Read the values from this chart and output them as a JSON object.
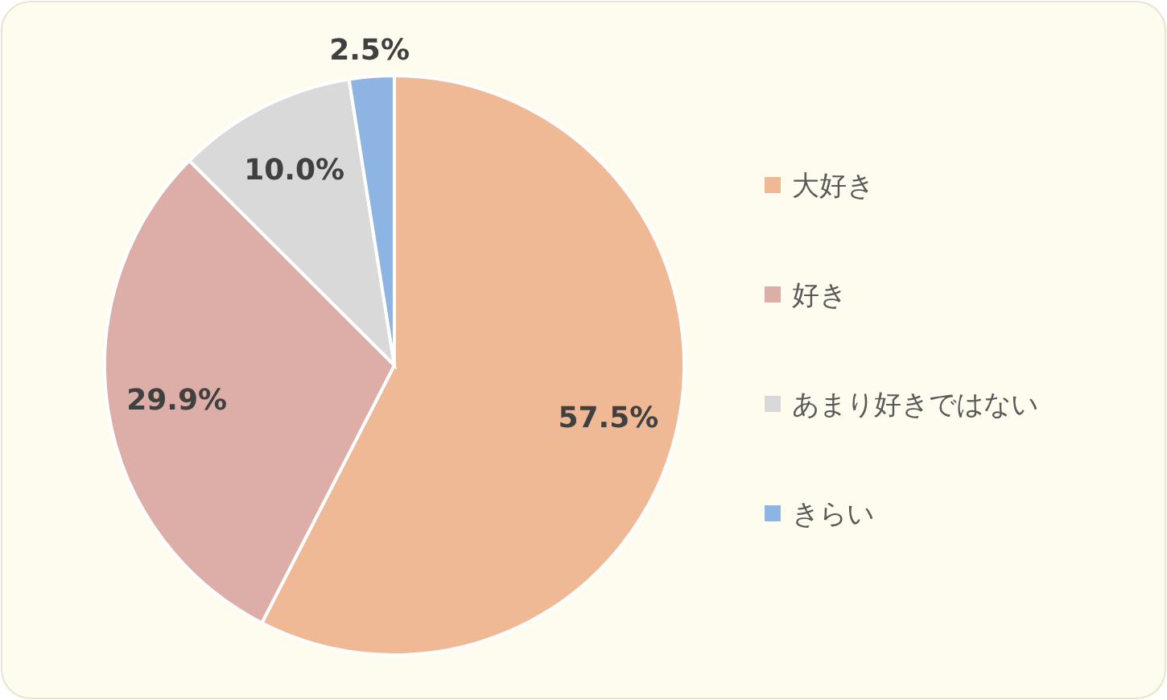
{
  "chart_data": {
    "type": "pie",
    "categories": [
      "大好き",
      "好き",
      "あまり好きではない",
      "きらい"
    ],
    "values": [
      57.5,
      29.9,
      10.0,
      2.5
    ],
    "colors": [
      "#eeb994",
      "#dcaea7",
      "#d9d9d9",
      "#8db4e2"
    ],
    "value_labels": [
      "57.5%",
      "29.9%",
      "10.0%",
      "2.5%"
    ],
    "legend": "right"
  }
}
